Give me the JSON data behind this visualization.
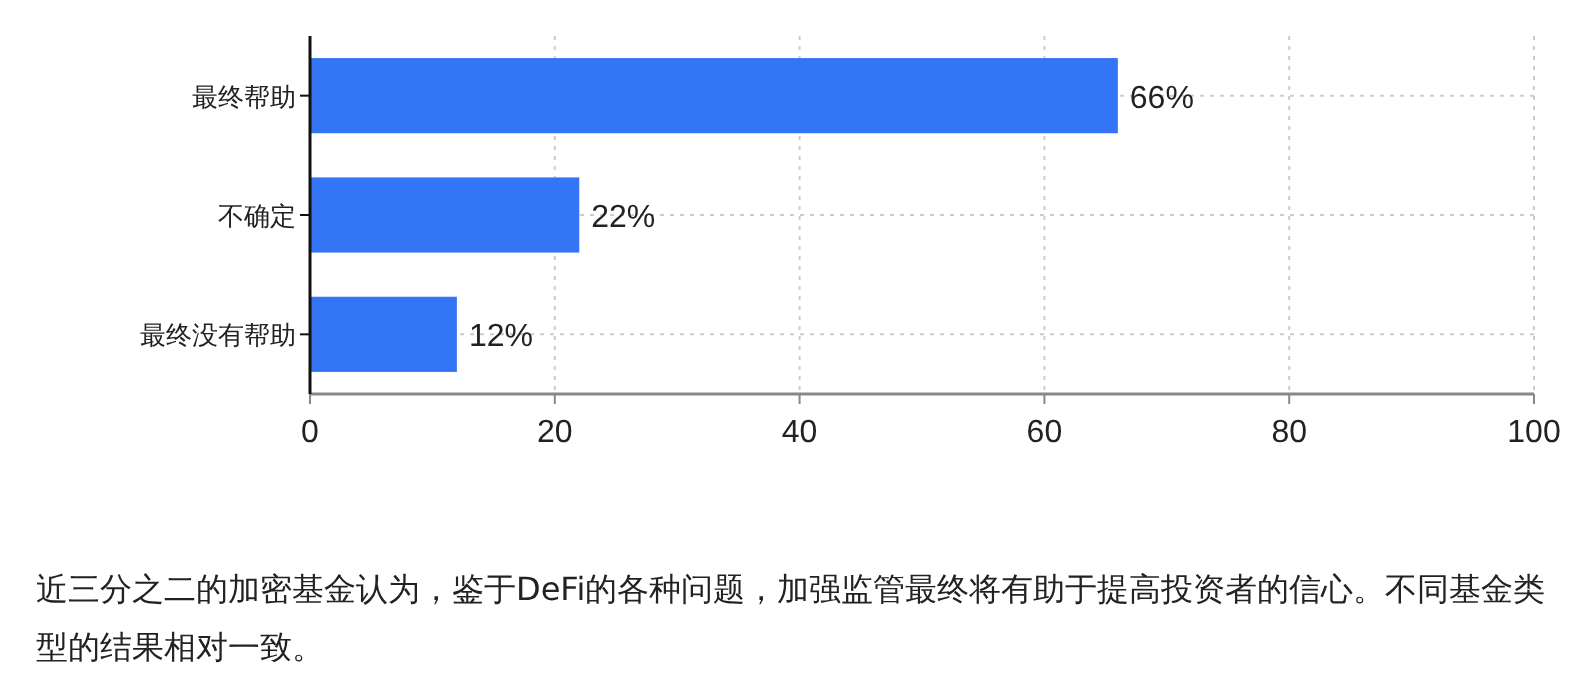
{
  "chart_data": {
    "type": "bar",
    "orientation": "horizontal",
    "categories": [
      "最终帮助",
      "不确定",
      "最终没有帮助"
    ],
    "values": [
      66,
      22,
      12
    ],
    "value_labels": [
      "66%",
      "22%",
      "12%"
    ],
    "color": "#3375f5",
    "xlim": [
      0,
      100
    ],
    "xticks": [
      0,
      20,
      40,
      60,
      80,
      100
    ],
    "grid": true,
    "annotations": [
      "近三分之二的加密基金认为，鉴于DeFi的各种问题，加强监管最终将有助于提高投资者的信心。不同基金类型的结果相对一致。"
    ]
  }
}
